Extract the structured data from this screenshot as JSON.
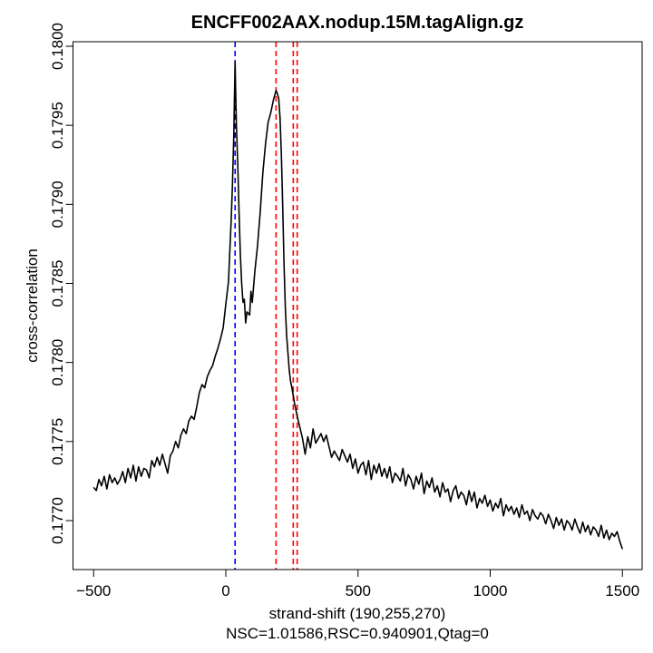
{
  "chart_data": {
    "type": "line",
    "title": "ENCFF002AAX.nodup.15M.tagAlign.gz",
    "xlabel": "strand-shift (190,255,270)",
    "subtitle": "NSC=1.01586,RSC=0.940901,Qtag=0",
    "ylabel": "cross-correlation",
    "xlim": [
      -500,
      1500
    ],
    "ylim": [
      0.17669,
      0.18003
    ],
    "x_ticks": [
      -500,
      0,
      500,
      1000,
      1500
    ],
    "x_tick_labels": [
      "−500",
      "0",
      "500",
      "1000",
      "1500"
    ],
    "y_ticks": [
      0.177,
      0.1775,
      0.178,
      0.1785,
      0.179,
      0.1795,
      0.18
    ],
    "y_tick_labels": [
      "0.1770",
      "0.1775",
      "0.1780",
      "0.1785",
      "0.1790",
      "0.1795",
      "0.1800"
    ],
    "grid": false,
    "vlines": [
      {
        "x": 35,
        "color": "#0000ff",
        "style": "dashed"
      },
      {
        "x": 190,
        "color": "#ff0000",
        "style": "dashed"
      },
      {
        "x": 255,
        "color": "#ff0000",
        "style": "dashed"
      },
      {
        "x": 270,
        "color": "#ff0000",
        "style": "dashed"
      }
    ],
    "line_color": "#000000",
    "series": [
      {
        "name": "cross-correlation",
        "points": [
          [
            -500,
            0.17721
          ],
          [
            -490,
            0.17719
          ],
          [
            -480,
            0.17726
          ],
          [
            -470,
            0.17722
          ],
          [
            -460,
            0.17728
          ],
          [
            -450,
            0.1772
          ],
          [
            -440,
            0.17729
          ],
          [
            -430,
            0.17724
          ],
          [
            -420,
            0.17727
          ],
          [
            -410,
            0.17723
          ],
          [
            -400,
            0.17726
          ],
          [
            -390,
            0.17731
          ],
          [
            -380,
            0.17724
          ],
          [
            -370,
            0.17733
          ],
          [
            -360,
            0.17727
          ],
          [
            -350,
            0.17735
          ],
          [
            -340,
            0.17725
          ],
          [
            -330,
            0.17734
          ],
          [
            -320,
            0.17728
          ],
          [
            -310,
            0.17733
          ],
          [
            -300,
            0.17732
          ],
          [
            -290,
            0.17727
          ],
          [
            -280,
            0.17738
          ],
          [
            -270,
            0.17734
          ],
          [
            -260,
            0.1774
          ],
          [
            -250,
            0.17735
          ],
          [
            -240,
            0.17742
          ],
          [
            -230,
            0.17736
          ],
          [
            -220,
            0.1773
          ],
          [
            -210,
            0.17741
          ],
          [
            -200,
            0.17744
          ],
          [
            -190,
            0.1775
          ],
          [
            -180,
            0.17746
          ],
          [
            -170,
            0.17754
          ],
          [
            -160,
            0.17758
          ],
          [
            -150,
            0.17755
          ],
          [
            -140,
            0.17763
          ],
          [
            -130,
            0.17766
          ],
          [
            -120,
            0.17764
          ],
          [
            -110,
            0.17772
          ],
          [
            -100,
            0.17781
          ],
          [
            -90,
            0.17786
          ],
          [
            -80,
            0.17784
          ],
          [
            -70,
            0.17791
          ],
          [
            -60,
            0.17795
          ],
          [
            -50,
            0.17798
          ],
          [
            -40,
            0.17804
          ],
          [
            -30,
            0.17809
          ],
          [
            -20,
            0.17815
          ],
          [
            -10,
            0.17822
          ],
          [
            0,
            0.17837
          ],
          [
            10,
            0.17851
          ],
          [
            20,
            0.17889
          ],
          [
            25,
            0.17912
          ],
          [
            30,
            0.17943
          ],
          [
            35,
            0.1799
          ],
          [
            40,
            0.1795
          ],
          [
            45,
            0.17926
          ],
          [
            50,
            0.17895
          ],
          [
            55,
            0.17868
          ],
          [
            60,
            0.1785
          ],
          [
            65,
            0.17838
          ],
          [
            70,
            0.1784
          ],
          [
            75,
            0.17825
          ],
          [
            80,
            0.17832
          ],
          [
            90,
            0.1783
          ],
          [
            95,
            0.17845
          ],
          [
            100,
            0.17838
          ],
          [
            110,
            0.17858
          ],
          [
            120,
            0.17874
          ],
          [
            130,
            0.17895
          ],
          [
            140,
            0.1792
          ],
          [
            150,
            0.17938
          ],
          [
            160,
            0.17952
          ],
          [
            170,
            0.17958
          ],
          [
            180,
            0.17966
          ],
          [
            190,
            0.17972
          ],
          [
            195,
            0.1797
          ],
          [
            200,
            0.17967
          ],
          [
            205,
            0.17955
          ],
          [
            210,
            0.17932
          ],
          [
            215,
            0.179
          ],
          [
            220,
            0.17863
          ],
          [
            225,
            0.17835
          ],
          [
            230,
            0.17817
          ],
          [
            240,
            0.17795
          ],
          [
            245,
            0.17788
          ],
          [
            250,
            0.17784
          ],
          [
            260,
            0.17774
          ],
          [
            270,
            0.17766
          ],
          [
            280,
            0.17759
          ],
          [
            290,
            0.17752
          ],
          [
            300,
            0.17742
          ],
          [
            310,
            0.17753
          ],
          [
            320,
            0.17746
          ],
          [
            330,
            0.17758
          ],
          [
            340,
            0.17749
          ],
          [
            350,
            0.17752
          ],
          [
            360,
            0.17755
          ],
          [
            370,
            0.1775
          ],
          [
            380,
            0.17754
          ],
          [
            390,
            0.17747
          ],
          [
            400,
            0.1774
          ],
          [
            410,
            0.17744
          ],
          [
            420,
            0.17741
          ],
          [
            430,
            0.17738
          ],
          [
            440,
            0.17745
          ],
          [
            450,
            0.17741
          ],
          [
            460,
            0.17737
          ],
          [
            470,
            0.17742
          ],
          [
            480,
            0.17733
          ],
          [
            490,
            0.17739
          ],
          [
            500,
            0.1773
          ],
          [
            510,
            0.17735
          ],
          [
            520,
            0.17737
          ],
          [
            530,
            0.17729
          ],
          [
            540,
            0.17738
          ],
          [
            550,
            0.17726
          ],
          [
            560,
            0.17735
          ],
          [
            570,
            0.1773
          ],
          [
            580,
            0.17736
          ],
          [
            590,
            0.17728
          ],
          [
            600,
            0.17733
          ],
          [
            610,
            0.17727
          ],
          [
            620,
            0.17734
          ],
          [
            630,
            0.17724
          ],
          [
            640,
            0.1773
          ],
          [
            650,
            0.17728
          ],
          [
            660,
            0.17725
          ],
          [
            670,
            0.17733
          ],
          [
            680,
            0.17722
          ],
          [
            690,
            0.17729
          ],
          [
            700,
            0.17726
          ],
          [
            710,
            0.1772
          ],
          [
            720,
            0.17728
          ],
          [
            730,
            0.17723
          ],
          [
            740,
            0.1773
          ],
          [
            750,
            0.17717
          ],
          [
            760,
            0.17725
          ],
          [
            770,
            0.17721
          ],
          [
            780,
            0.17727
          ],
          [
            790,
            0.17718
          ],
          [
            800,
            0.17722
          ],
          [
            810,
            0.17715
          ],
          [
            820,
            0.17724
          ],
          [
            830,
            0.17718
          ],
          [
            840,
            0.1772
          ],
          [
            850,
            0.17712
          ],
          [
            860,
            0.17719
          ],
          [
            870,
            0.17722
          ],
          [
            880,
            0.17714
          ],
          [
            890,
            0.17718
          ],
          [
            900,
            0.17716
          ],
          [
            910,
            0.1771
          ],
          [
            920,
            0.17719
          ],
          [
            930,
            0.17712
          ],
          [
            940,
            0.17718
          ],
          [
            950,
            0.17708
          ],
          [
            960,
            0.17714
          ],
          [
            970,
            0.17711
          ],
          [
            980,
            0.17716
          ],
          [
            990,
            0.17709
          ],
          [
            1000,
            0.17713
          ],
          [
            1010,
            0.17706
          ],
          [
            1020,
            0.17711
          ],
          [
            1030,
            0.17708
          ],
          [
            1040,
            0.17714
          ],
          [
            1050,
            0.17703
          ],
          [
            1060,
            0.1771
          ],
          [
            1070,
            0.17706
          ],
          [
            1080,
            0.17709
          ],
          [
            1090,
            0.17704
          ],
          [
            1100,
            0.17708
          ],
          [
            1110,
            0.17702
          ],
          [
            1120,
            0.1771
          ],
          [
            1130,
            0.17704
          ],
          [
            1140,
            0.17706
          ],
          [
            1150,
            0.177
          ],
          [
            1160,
            0.17707
          ],
          [
            1170,
            0.17703
          ],
          [
            1180,
            0.17701
          ],
          [
            1190,
            0.17705
          ],
          [
            1200,
            0.17703
          ],
          [
            1210,
            0.17698
          ],
          [
            1220,
            0.17704
          ],
          [
            1230,
            0.177
          ],
          [
            1240,
            0.17695
          ],
          [
            1250,
            0.17702
          ],
          [
            1260,
            0.17697
          ],
          [
            1270,
            0.17701
          ],
          [
            1280,
            0.17694
          ],
          [
            1290,
            0.177
          ],
          [
            1300,
            0.17698
          ],
          [
            1310,
            0.17694
          ],
          [
            1320,
            0.17701
          ],
          [
            1330,
            0.17696
          ],
          [
            1340,
            0.17692
          ],
          [
            1350,
            0.17699
          ],
          [
            1360,
            0.17693
          ],
          [
            1370,
            0.17697
          ],
          [
            1380,
            0.17691
          ],
          [
            1390,
            0.17696
          ],
          [
            1400,
            0.17694
          ],
          [
            1410,
            0.1769
          ],
          [
            1420,
            0.17697
          ],
          [
            1430,
            0.17689
          ],
          [
            1440,
            0.17694
          ],
          [
            1450,
            0.17688
          ],
          [
            1460,
            0.17692
          ],
          [
            1470,
            0.1769
          ],
          [
            1480,
            0.17693
          ],
          [
            1490,
            0.17687
          ],
          [
            1500,
            0.17682
          ]
        ]
      }
    ]
  }
}
